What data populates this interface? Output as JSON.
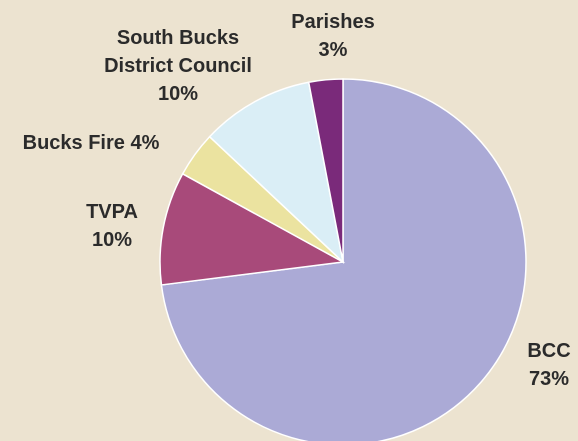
{
  "chart_data": {
    "type": "pie",
    "categories": [
      "BCC",
      "TVPA",
      "Bucks Fire",
      "South Bucks District Council",
      "Parishes"
    ],
    "values": [
      73,
      10,
      4,
      10,
      3
    ],
    "value_labels": [
      "73%",
      "10%",
      "4%",
      "10%",
      "3%"
    ],
    "colors": [
      "#abaad6",
      "#a84a7a",
      "#ebe3a0",
      "#daeef6",
      "#7a2a7a"
    ]
  }
}
